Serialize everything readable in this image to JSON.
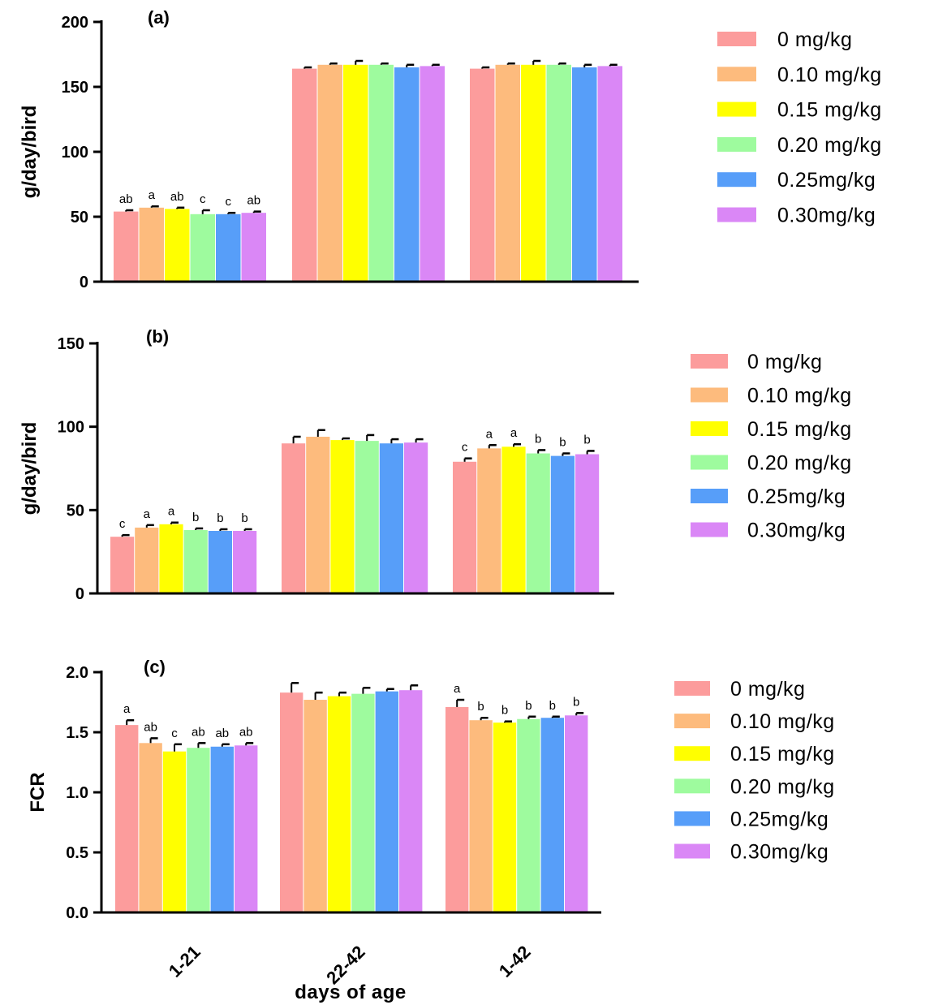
{
  "colors": {
    "0 mg/kg": "#fc9c9c",
    "0.10 mg/kg": "#fdbb7d",
    "0.15 mg/kg": "#ffff00",
    "0.20 mg/kg": "#9efb9e",
    "0.25mg/kg": "#579ef9",
    "0.30mg/kg": "#da87f6"
  },
  "chart_data": [
    {
      "type": "bar",
      "title": "(a)",
      "ylabel": "g/day/bird",
      "ylim": [
        0,
        200
      ],
      "yticks": [
        0,
        50,
        100,
        150,
        200
      ],
      "categories": [
        "1-21",
        "22-42",
        "1-42"
      ],
      "legend_placement": "right",
      "series": [
        {
          "name": "0 mg/kg",
          "values": [
            54,
            164,
            164
          ],
          "errors": [
            1,
            1,
            1
          ],
          "labels": [
            "ab",
            "",
            ""
          ]
        },
        {
          "name": "0.10 mg/kg",
          "values": [
            57,
            167,
            167
          ],
          "errors": [
            1,
            1,
            1
          ],
          "labels": [
            "a",
            "",
            ""
          ]
        },
        {
          "name": "0.15 mg/kg",
          "values": [
            56,
            167,
            167
          ],
          "errors": [
            1,
            3,
            3
          ],
          "labels": [
            "ab",
            "",
            ""
          ]
        },
        {
          "name": "0.20 mg/kg",
          "values": [
            52,
            167,
            167
          ],
          "errors": [
            3,
            1,
            1
          ],
          "labels": [
            "c",
            "",
            ""
          ]
        },
        {
          "name": "0.25mg/kg",
          "values": [
            52,
            165,
            165
          ],
          "errors": [
            1,
            2,
            2
          ],
          "labels": [
            "c",
            "",
            ""
          ]
        },
        {
          "name": "0.30mg/kg",
          "values": [
            53,
            166,
            166
          ],
          "errors": [
            1,
            1,
            1
          ],
          "labels": [
            "ab",
            "",
            ""
          ]
        }
      ]
    },
    {
      "type": "bar",
      "title": "(b)",
      "ylabel": "g/day/bird",
      "ylim": [
        0,
        150
      ],
      "yticks": [
        0,
        50,
        100,
        150
      ],
      "categories": [
        "1-21",
        "22-42",
        "1-42"
      ],
      "legend_placement": "right",
      "series": [
        {
          "name": "0 mg/kg",
          "values": [
            34,
            90,
            79
          ],
          "errors": [
            1,
            4,
            2
          ],
          "labels": [
            "c",
            "",
            "c"
          ]
        },
        {
          "name": "0.10 mg/kg",
          "values": [
            39.5,
            94,
            87
          ],
          "errors": [
            1.5,
            4,
            2
          ],
          "labels": [
            "a",
            "",
            "a"
          ]
        },
        {
          "name": "0.15 mg/kg",
          "values": [
            41.5,
            92,
            88
          ],
          "errors": [
            1,
            1,
            1.5
          ],
          "labels": [
            "a",
            "",
            "a"
          ]
        },
        {
          "name": "0.20 mg/kg",
          "values": [
            38,
            91.5,
            84
          ],
          "errors": [
            1,
            3.5,
            2
          ],
          "labels": [
            "b",
            "",
            "b"
          ]
        },
        {
          "name": "0.25mg/kg",
          "values": [
            37.5,
            90,
            82.5
          ],
          "errors": [
            1,
            2.5,
            1.5
          ],
          "labels": [
            "b",
            "",
            "b"
          ]
        },
        {
          "name": "0.30mg/kg",
          "values": [
            37.5,
            90.5,
            83.5
          ],
          "errors": [
            1,
            2,
            2
          ],
          "labels": [
            "b",
            "",
            "b"
          ]
        }
      ]
    },
    {
      "type": "bar",
      "title": "(c)",
      "ylabel": "FCR",
      "ylim": [
        0,
        2.0
      ],
      "yticks": [
        "0.0",
        "0.5",
        "1.0",
        "1.5",
        "2.0"
      ],
      "categories": [
        "1-21",
        "22-42",
        "1-42"
      ],
      "xlabel": "days of age",
      "legend_placement": "right",
      "series": [
        {
          "name": "0 mg/kg",
          "values": [
            1.56,
            1.83,
            1.71
          ],
          "errors": [
            0.04,
            0.08,
            0.06
          ],
          "labels": [
            "a",
            "",
            "a"
          ]
        },
        {
          "name": "0.10 mg/kg",
          "values": [
            1.41,
            1.77,
            1.6
          ],
          "errors": [
            0.04,
            0.06,
            0.02
          ],
          "labels": [
            "ab",
            "",
            "b"
          ]
        },
        {
          "name": "0.15 mg/kg",
          "values": [
            1.34,
            1.8,
            1.58
          ],
          "errors": [
            0.06,
            0.03,
            0.01
          ],
          "labels": [
            "c",
            "",
            "b"
          ]
        },
        {
          "name": "0.20 mg/kg",
          "values": [
            1.37,
            1.82,
            1.61
          ],
          "errors": [
            0.04,
            0.05,
            0.02
          ],
          "labels": [
            "ab",
            "",
            "b"
          ]
        },
        {
          "name": "0.25mg/kg",
          "values": [
            1.38,
            1.84,
            1.62
          ],
          "errors": [
            0.02,
            0.02,
            0.01
          ],
          "labels": [
            "ab",
            "",
            "b"
          ]
        },
        {
          "name": "0.30mg/kg",
          "values": [
            1.39,
            1.85,
            1.64
          ],
          "errors": [
            0.02,
            0.04,
            0.02
          ],
          "labels": [
            "ab",
            "",
            "b"
          ]
        }
      ]
    }
  ]
}
